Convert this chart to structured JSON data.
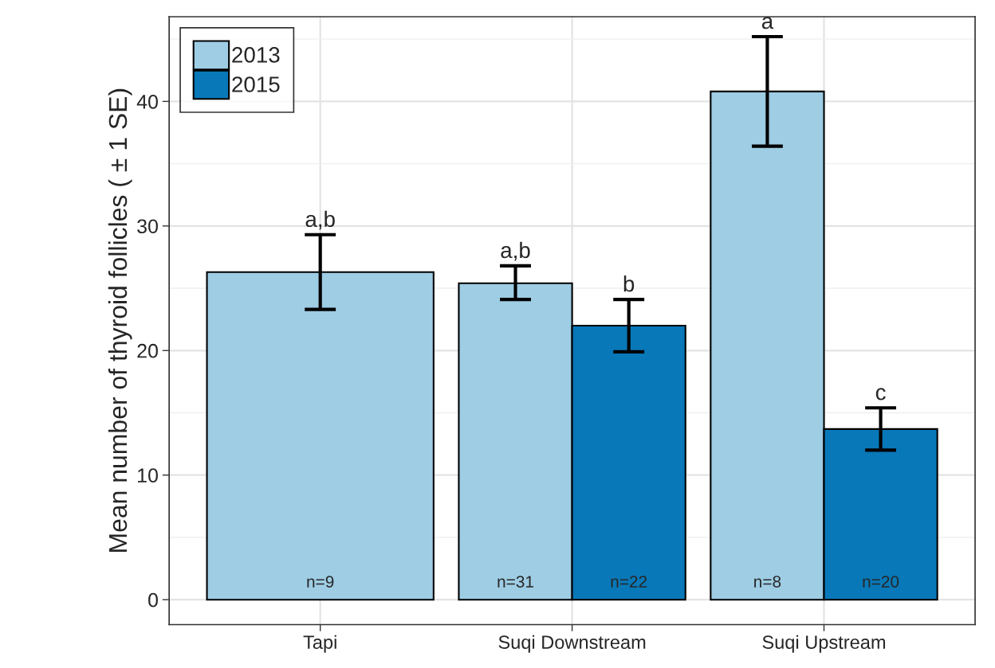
{
  "chart_data": {
    "type": "bar",
    "ylabel": "Mean number of thyroid follicles ( ± 1 SE)",
    "categories": [
      "Tapi",
      "Suqi Downstream",
      "Suqi Upstream"
    ],
    "series": [
      {
        "name": "2013",
        "color": "#9ecde4",
        "values": [
          26.3,
          25.4,
          40.8
        ],
        "errors": [
          [
            23.3,
            29.3
          ],
          [
            24.1,
            26.8
          ],
          [
            36.4,
            45.2
          ]
        ],
        "value_labels": [
          "a,b",
          "a,b",
          "a"
        ]
      },
      {
        "name": "2015",
        "color": "#0878b8",
        "values": [
          null,
          22.0,
          13.7
        ],
        "errors": [
          null,
          [
            19.9,
            24.1
          ],
          [
            12.0,
            15.4
          ]
        ],
        "value_labels": [
          null,
          "b",
          "c"
        ]
      }
    ],
    "annotations": [
      "n=9",
      "n=31",
      "n=22",
      "n=8",
      "n=20"
    ],
    "ylim": [
      -2.0,
      46.8
    ],
    "yticks": [
      0,
      10,
      20,
      30,
      40
    ],
    "grid": true,
    "legend": "top left"
  }
}
